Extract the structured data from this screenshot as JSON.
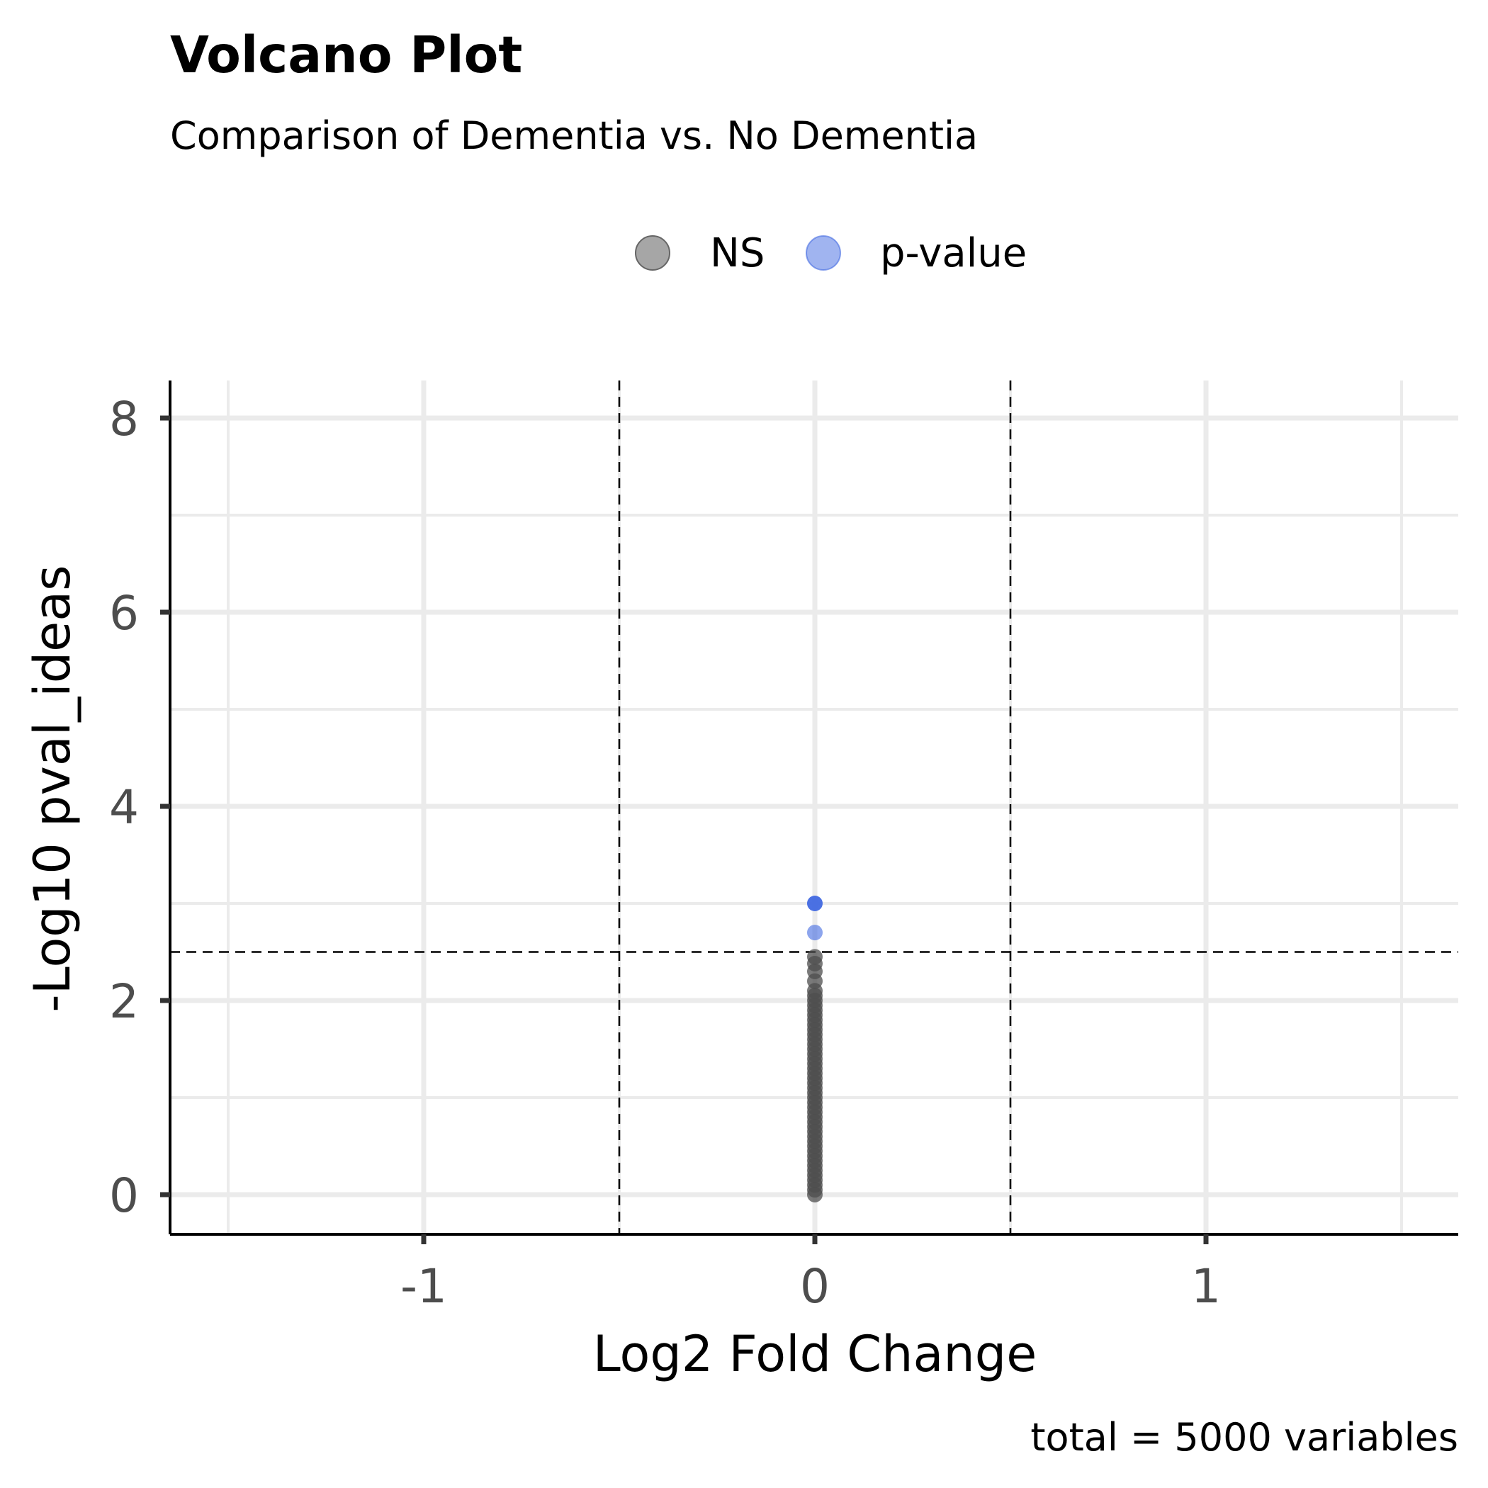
{
  "chart_data": {
    "type": "scatter",
    "title": "Volcano Plot",
    "subtitle": "Comparison of Dementia vs. No Dementia",
    "xlabel": "Log2 Fold Change",
    "ylabel": "-Log10 pval_ideas",
    "caption": "total = 5000 variables",
    "xlim": [
      -1.65,
      1.65
    ],
    "ylim": [
      -0.2,
      8.2
    ],
    "x_ticks": [
      -1,
      0,
      1
    ],
    "x_tick_labels": [
      "-1",
      "0",
      "1"
    ],
    "y_ticks": [
      0,
      2,
      4,
      6,
      8
    ],
    "y_tick_labels": [
      "0",
      "2",
      "4",
      "6",
      "8"
    ],
    "grid": true,
    "legend": {
      "position": "top",
      "entries": [
        {
          "label": "NS",
          "color": "#808080"
        },
        {
          "label": "p-value",
          "color": "#4169E1"
        }
      ]
    },
    "cutoffs": {
      "x": [
        -0.5,
        0.5
      ],
      "y": 2.5
    },
    "series": [
      {
        "name": "NS",
        "color": "#4d4d4d",
        "points": [
          [
            0,
            0.0
          ],
          [
            0,
            0.05
          ],
          [
            0,
            0.1
          ],
          [
            0,
            0.15
          ],
          [
            0,
            0.2
          ],
          [
            0,
            0.25
          ],
          [
            0,
            0.3
          ],
          [
            0,
            0.35
          ],
          [
            0,
            0.4
          ],
          [
            0,
            0.45
          ],
          [
            0,
            0.5
          ],
          [
            0,
            0.55
          ],
          [
            0,
            0.6
          ],
          [
            0,
            0.65
          ],
          [
            0,
            0.7
          ],
          [
            0,
            0.75
          ],
          [
            0,
            0.8
          ],
          [
            0,
            0.85
          ],
          [
            0,
            0.9
          ],
          [
            0,
            0.95
          ],
          [
            0,
            1.0
          ],
          [
            0,
            1.05
          ],
          [
            0,
            1.1
          ],
          [
            0,
            1.15
          ],
          [
            0,
            1.2
          ],
          [
            0,
            1.25
          ],
          [
            0,
            1.3
          ],
          [
            0,
            1.35
          ],
          [
            0,
            1.4
          ],
          [
            0,
            1.45
          ],
          [
            0,
            1.5
          ],
          [
            0,
            1.55
          ],
          [
            0,
            1.6
          ],
          [
            0,
            1.65
          ],
          [
            0,
            1.7
          ],
          [
            0,
            1.75
          ],
          [
            0,
            1.8
          ],
          [
            0,
            1.85
          ],
          [
            0,
            1.9
          ],
          [
            0,
            1.95
          ],
          [
            0,
            2.0
          ],
          [
            0,
            2.05
          ],
          [
            0,
            2.1
          ],
          [
            0,
            2.2
          ],
          [
            0,
            2.3
          ],
          [
            0,
            2.38
          ],
          [
            0,
            2.45
          ]
        ]
      },
      {
        "name": "p-value",
        "color": "#4169E1",
        "points": [
          [
            0,
            2.7
          ],
          [
            0,
            3.0
          ]
        ]
      }
    ]
  }
}
